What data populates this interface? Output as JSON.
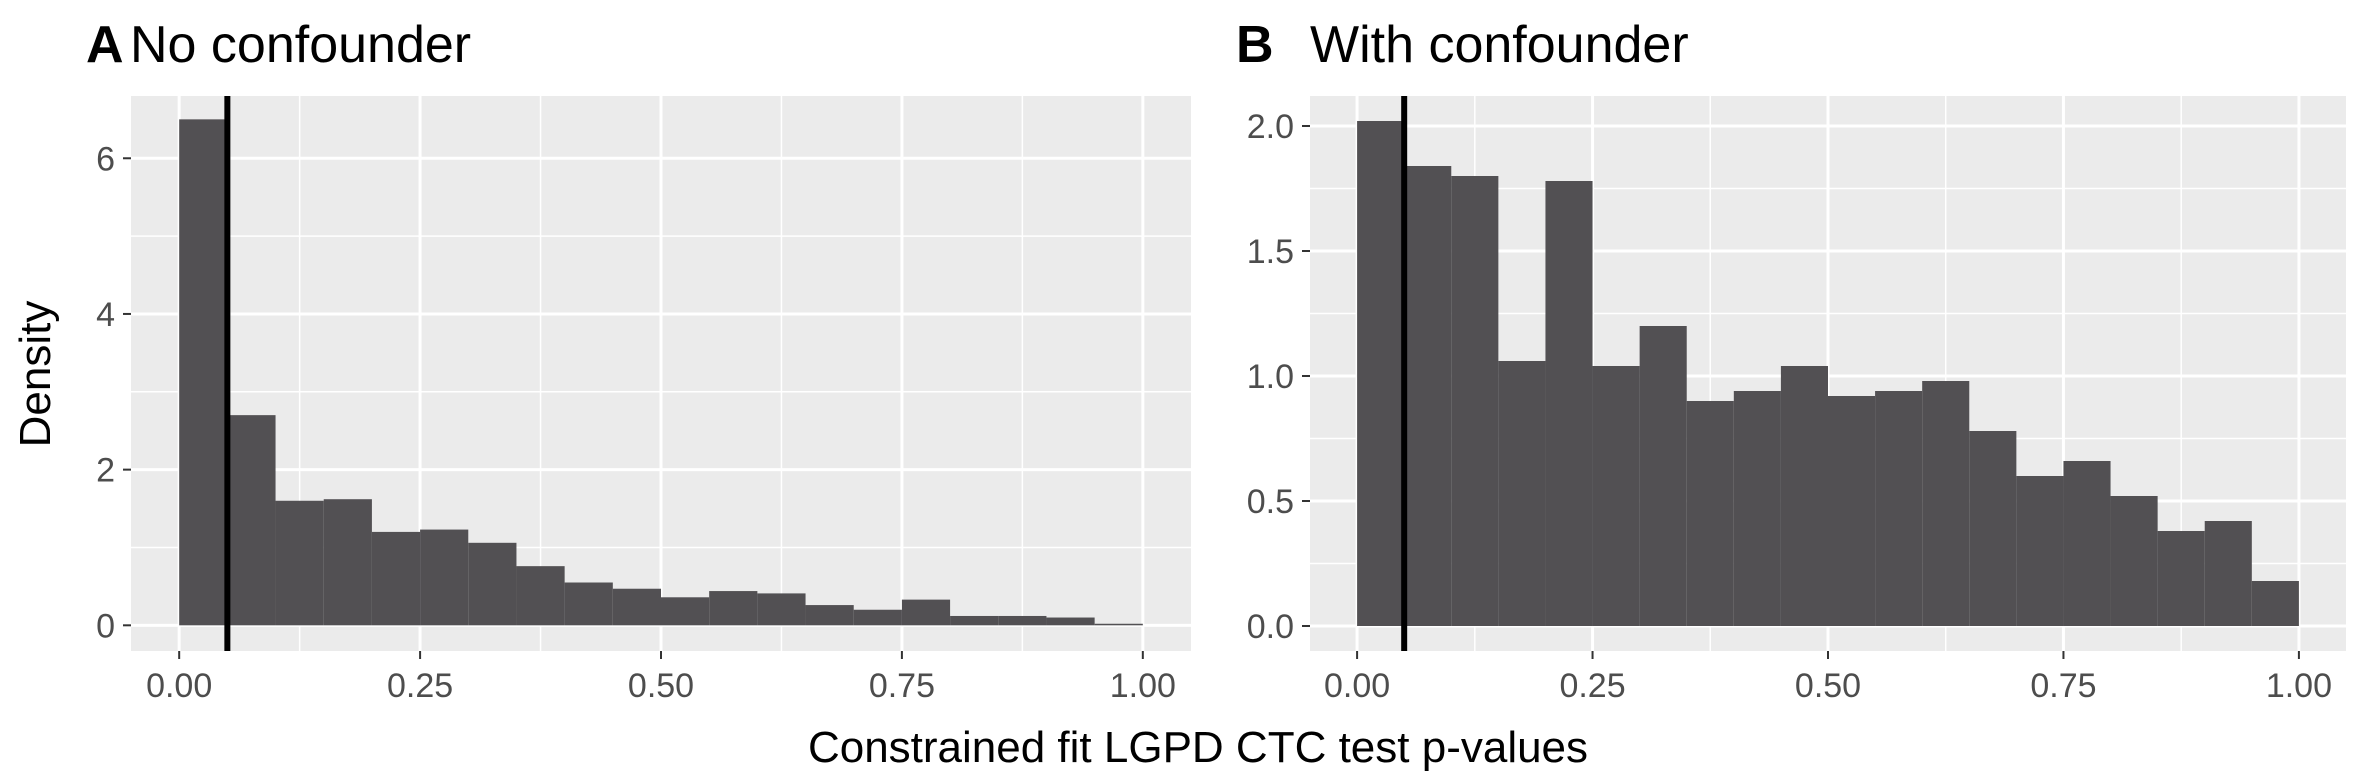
{
  "figure": {
    "xlabel": "Constrained fit LGPD CTC test p-values",
    "ylabel": "Density"
  },
  "colors": {
    "panel_background": "#ebebeb",
    "grid_major": "#ffffff",
    "bar_fill": "#525053",
    "vline": "#000000",
    "tick_text": "#4d4d4d"
  },
  "chart_data": [
    {
      "type": "bar",
      "tag": "A",
      "title": "No confounder",
      "xlabel": "Constrained fit LGPD CTC test p-values",
      "ylabel": "Density",
      "bin_width": 0.05,
      "bin_starts": [
        0.0,
        0.05,
        0.1,
        0.15,
        0.2,
        0.25,
        0.3,
        0.35,
        0.4,
        0.45,
        0.5,
        0.55,
        0.6,
        0.65,
        0.7,
        0.75,
        0.8,
        0.85,
        0.9,
        0.95
      ],
      "values": [
        6.5,
        2.7,
        1.6,
        1.62,
        1.2,
        1.23,
        1.06,
        0.76,
        0.55,
        0.47,
        0.36,
        0.44,
        0.41,
        0.26,
        0.2,
        0.33,
        0.12,
        0.12,
        0.1,
        0.02
      ],
      "vline": 0.05,
      "xlim": [
        -0.05,
        1.05
      ],
      "ylim": [
        -0.33,
        6.8
      ],
      "x_ticks": [
        0,
        0.25,
        0.5,
        0.75,
        1.0
      ],
      "x_tick_labels": [
        "0.00",
        "0.25",
        "0.50",
        "0.75",
        "1.00"
      ],
      "y_ticks": [
        0,
        2,
        4,
        6
      ],
      "y_tick_labels": [
        "0",
        "2",
        "4",
        "6"
      ],
      "grid": true
    },
    {
      "type": "bar",
      "tag": "B",
      "title": "With confounder",
      "xlabel": "Constrained fit LGPD CTC test p-values",
      "ylabel": "Density",
      "bin_width": 0.05,
      "bin_starts": [
        0.0,
        0.05,
        0.1,
        0.15,
        0.2,
        0.25,
        0.3,
        0.35,
        0.4,
        0.45,
        0.5,
        0.55,
        0.6,
        0.65,
        0.7,
        0.75,
        0.8,
        0.85,
        0.9,
        0.95
      ],
      "values": [
        2.02,
        1.84,
        1.8,
        1.06,
        1.78,
        1.04,
        1.2,
        0.9,
        0.94,
        1.04,
        0.92,
        0.94,
        0.98,
        0.78,
        0.6,
        0.66,
        0.52,
        0.38,
        0.42,
        0.18
      ],
      "vline": 0.05,
      "xlim": [
        -0.05,
        1.05
      ],
      "ylim": [
        -0.1,
        2.12
      ],
      "x_ticks": [
        0,
        0.25,
        0.5,
        0.75,
        1.0
      ],
      "x_tick_labels": [
        "0.00",
        "0.25",
        "0.50",
        "0.75",
        "1.00"
      ],
      "y_ticks": [
        0,
        0.5,
        1.0,
        1.5,
        2.0
      ],
      "y_tick_labels": [
        "0.0",
        "0.5",
        "1.0",
        "1.5",
        "2.0"
      ],
      "grid": true
    }
  ]
}
